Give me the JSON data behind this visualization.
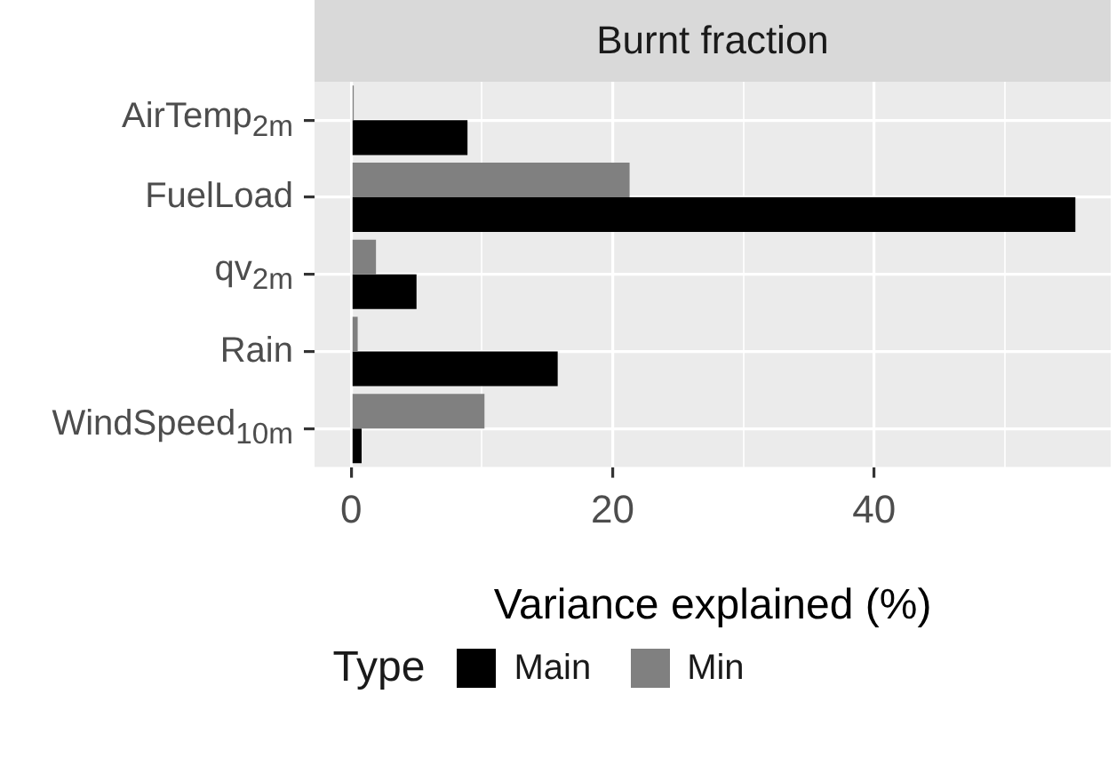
{
  "chart_data": {
    "type": "bar",
    "orientation": "horizontal",
    "title": "Burnt fraction",
    "xlabel": "Variance explained (%)",
    "legend_title": "Type",
    "categories": [
      "AirTemp$_{2m}$",
      "FuelLoad",
      "qv$_{2m}$",
      "Rain",
      "WindSpeed$_{10m}$"
    ],
    "series": [
      {
        "name": "Main",
        "color": "#000000",
        "values": [
          8.9,
          55.4,
          5.0,
          15.8,
          0.8
        ]
      },
      {
        "name": "Min",
        "color": "#808080",
        "values": [
          0.2,
          21.3,
          1.9,
          0.5,
          10.2
        ]
      }
    ],
    "xlim": [
      -2.8,
      58.1
    ],
    "xticks": [
      0,
      {
        "value": 10,
        "label": null
      },
      20,
      {
        "value": 30,
        "label": null
      },
      40,
      {
        "value": 50,
        "label": null
      }
    ],
    "grid": true,
    "legend": "bottom"
  }
}
